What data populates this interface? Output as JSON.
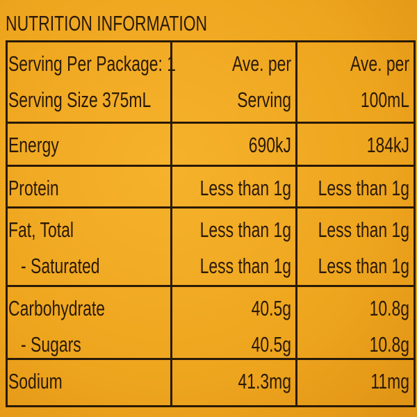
{
  "title": "NUTRITION INFORMATION",
  "table": {
    "header": [
      [
        "Serving Per Package: 1",
        "Serving Size 375mL"
      ],
      [
        "Ave. per",
        "Serving"
      ],
      [
        "Ave. per",
        "100mL"
      ]
    ],
    "rows": [
      [
        [
          "Energy"
        ],
        [
          "690kJ"
        ],
        [
          "184kJ"
        ]
      ],
      [
        [
          "Protein"
        ],
        [
          "Less than 1g"
        ],
        [
          "Less than 1g"
        ]
      ],
      [
        [
          "Fat, Total",
          "- Saturated"
        ],
        [
          "Less than 1g",
          "Less than 1g"
        ],
        [
          "Less than 1g",
          "Less than 1g"
        ]
      ],
      [
        [
          "Carbohydrate",
          "- Sugars"
        ],
        [
          "40.5g",
          "40.5g"
        ],
        [
          "10.8g",
          "10.8g"
        ]
      ],
      [
        [
          "Sodium"
        ],
        [
          "41.3mg"
        ],
        [
          "11mg"
        ]
      ]
    ]
  }
}
